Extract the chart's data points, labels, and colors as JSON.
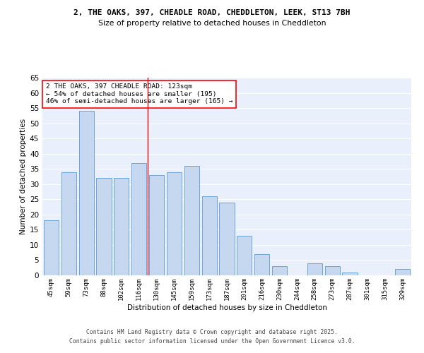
{
  "title1": "2, THE OAKS, 397, CHEADLE ROAD, CHEDDLETON, LEEK, ST13 7BH",
  "title2": "Size of property relative to detached houses in Cheddleton",
  "xlabel": "Distribution of detached houses by size in Cheddleton",
  "ylabel": "Number of detached properties",
  "categories": [
    "45sqm",
    "59sqm",
    "73sqm",
    "88sqm",
    "102sqm",
    "116sqm",
    "130sqm",
    "145sqm",
    "159sqm",
    "173sqm",
    "187sqm",
    "201sqm",
    "216sqm",
    "230sqm",
    "244sqm",
    "258sqm",
    "273sqm",
    "287sqm",
    "301sqm",
    "315sqm",
    "329sqm"
  ],
  "values": [
    18,
    34,
    54,
    32,
    32,
    37,
    33,
    34,
    36,
    26,
    24,
    13,
    7,
    3,
    0,
    4,
    3,
    1,
    0,
    0,
    2
  ],
  "bar_color": "#c5d8f0",
  "bar_edge_color": "#5b9bd5",
  "red_line_x": 5.5,
  "annotation_text": "2 THE OAKS, 397 CHEADLE ROAD: 123sqm\n← 54% of detached houses are smaller (195)\n46% of semi-detached houses are larger (165) →",
  "annotation_box_color": "white",
  "annotation_border_color": "red",
  "ylim": [
    0,
    65
  ],
  "yticks": [
    0,
    5,
    10,
    15,
    20,
    25,
    30,
    35,
    40,
    45,
    50,
    55,
    60,
    65
  ],
  "background_color": "#eaf0fb",
  "grid_color": "white",
  "footer1": "Contains HM Land Registry data © Crown copyright and database right 2025.",
  "footer2": "Contains public sector information licensed under the Open Government Licence v3.0."
}
